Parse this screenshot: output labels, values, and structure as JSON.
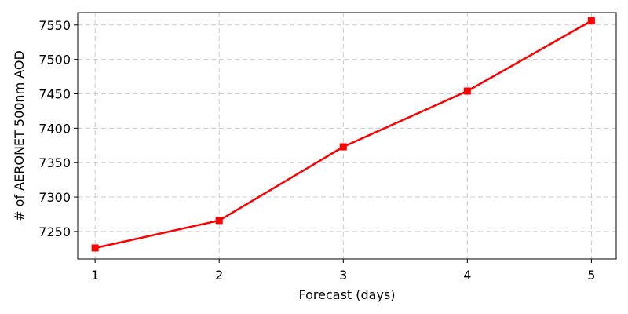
{
  "chart_data": {
    "type": "line",
    "title": "",
    "xlabel": "Forecast (days)",
    "ylabel": "# of AERONET 500nm AOD",
    "x": [
      1,
      2,
      3,
      4,
      5
    ],
    "xticks": [
      "1",
      "2",
      "3",
      "4",
      "5"
    ],
    "yticks": [
      7250,
      7300,
      7350,
      7400,
      7450,
      7500,
      7550
    ],
    "xlim": [
      0.86,
      5.2
    ],
    "ylim": [
      7210,
      7568
    ],
    "grid": true,
    "series": [
      {
        "values": [
          7226,
          7266,
          7373,
          7454,
          7556
        ],
        "color": "#ff0000",
        "marker": "square"
      }
    ]
  }
}
